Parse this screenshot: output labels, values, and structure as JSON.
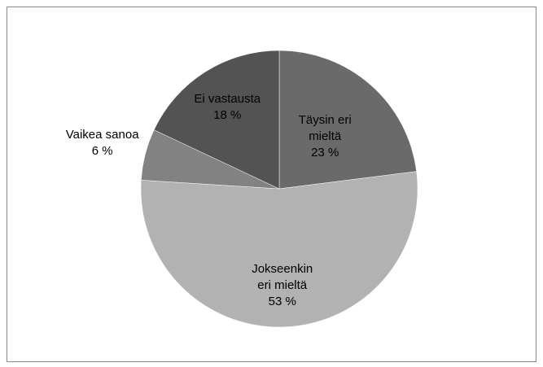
{
  "chart_data": {
    "type": "pie",
    "categories": [
      "Täysin eri\nmieltä",
      "Jokseenkin\neri mieltä",
      "Vaikea sanoa",
      "Ei vastausta"
    ],
    "values": [
      23,
      53,
      6,
      18
    ],
    "value_labels": [
      "23 %",
      "53 %",
      "6 %",
      "18 %"
    ],
    "colors": [
      "#6a6a6a",
      "#b2b2b2",
      "#828282",
      "#535353"
    ]
  }
}
